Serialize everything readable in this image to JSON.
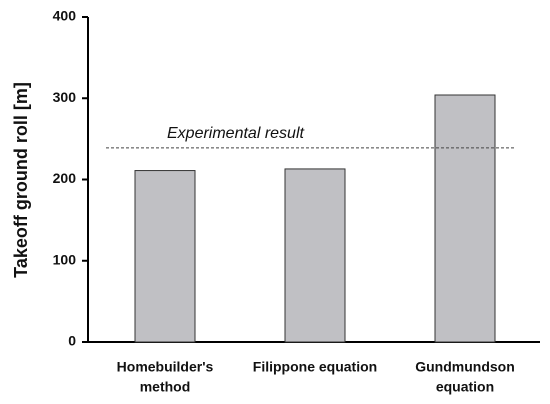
{
  "chart_data": {
    "type": "bar",
    "ylabel": "Takeoff ground roll [m]",
    "categories": [
      [
        "Homebuilder's",
        "method"
      ],
      [
        "Filippone equation"
      ],
      [
        "Gundmundson",
        "equation"
      ]
    ],
    "values": [
      211,
      213,
      304
    ],
    "color": "#c0c0c4",
    "ylim": [
      0,
      400
    ],
    "yticks": [
      0,
      100,
      200,
      300,
      400
    ],
    "reference_line": {
      "value": 239,
      "label": "Experimental result"
    }
  }
}
